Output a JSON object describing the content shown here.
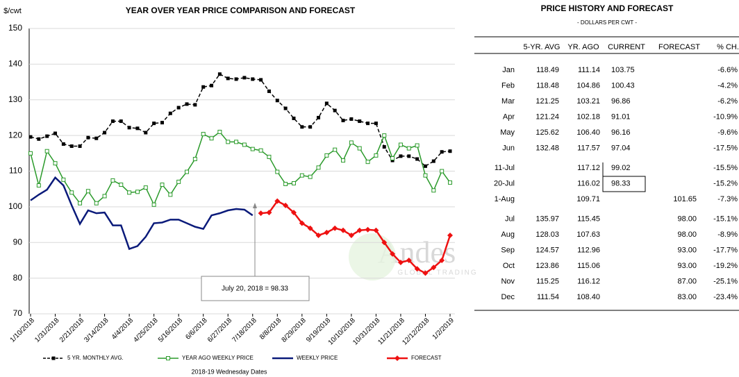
{
  "chart_data": {
    "type": "line",
    "title": "YEAR OVER YEAR PRICE COMPARISON AND FORECAST",
    "y_label": "$/cwt",
    "x_label": "2018-19 Wednesday Dates",
    "categories": [
      "1/10/2018",
      null,
      null,
      "1/31/2018",
      null,
      null,
      "2/21/2018",
      null,
      null,
      "3/14/2018",
      null,
      null,
      "4/4/2018",
      null,
      null,
      "4/25/2018",
      null,
      null,
      "5/16/2018",
      null,
      null,
      "6/6/2018",
      null,
      null,
      "6/27/2018",
      null,
      null,
      "7/18/2018",
      null,
      null,
      "8/8/2018",
      null,
      null,
      "8/29/2018",
      null,
      null,
      "9/19/2018",
      null,
      null,
      "10/10/2018",
      null,
      null,
      "10/31/2018",
      null,
      null,
      "11/21/2018",
      null,
      null,
      "12/12/2018",
      null,
      null,
      "1/2/2019"
    ],
    "ylim": [
      70,
      150
    ],
    "yticks": [
      70,
      80,
      90,
      100,
      110,
      120,
      130,
      140,
      150
    ],
    "series": [
      {
        "name": "5 YR. MONTHLY AVG.",
        "color": "#000000",
        "dash": true,
        "marker": "square-filled",
        "values": [
          119.6,
          119.0,
          119.8,
          120.6,
          117.6,
          117.0,
          117.0,
          119.4,
          119.2,
          120.8,
          124.0,
          124.0,
          122.2,
          122.0,
          120.8,
          123.4,
          123.6,
          126.2,
          127.8,
          128.8,
          128.6,
          133.6,
          134.0,
          137.2,
          136.0,
          135.8,
          136.2,
          135.8,
          135.6,
          132.4,
          129.8,
          127.6,
          124.8,
          122.4,
          122.4,
          125.0,
          129.0,
          127.0,
          124.2,
          124.6,
          124.0,
          123.4,
          123.4,
          116.8,
          113.0,
          114.2,
          114.2,
          113.4,
          111.4,
          112.8,
          115.4,
          115.6
        ]
      },
      {
        "name": "YEAR AGO WEEKLY PRICE",
        "color": "#2a9a2a",
        "dash": false,
        "marker": "square-open",
        "values": [
          115.0,
          106.0,
          115.6,
          112.2,
          107.6,
          104.0,
          101.0,
          104.4,
          101.0,
          103.0,
          107.4,
          106.2,
          104.0,
          104.2,
          105.4,
          100.6,
          106.2,
          103.4,
          107.0,
          109.8,
          113.4,
          120.4,
          119.2,
          121.0,
          118.2,
          118.2,
          117.4,
          116.2,
          115.8,
          114.0,
          109.8,
          106.4,
          106.6,
          108.8,
          108.4,
          111.0,
          114.4,
          116.0,
          113.0,
          118.0,
          116.4,
          112.6,
          114.4,
          120.0,
          113.6,
          117.4,
          116.4,
          117.2,
          108.8,
          104.6,
          110.0,
          106.8
        ]
      },
      {
        "name": "WEEKLY PRICE",
        "color": "#0a1a7a",
        "dash": false,
        "marker": "none",
        "values": [
          101.8,
          103.4,
          104.8,
          108.2,
          106.0,
          100.4,
          95.2,
          99.0,
          98.2,
          98.4,
          94.8,
          94.8,
          88.2,
          89.0,
          91.6,
          95.4,
          95.6,
          96.4,
          96.4,
          95.4,
          94.4,
          93.8,
          97.6,
          98.2,
          99.0,
          99.4,
          99.2,
          97.6,
          null,
          null,
          null,
          null,
          null,
          null,
          null,
          null,
          null,
          null,
          null,
          null,
          null,
          null,
          null,
          null,
          null,
          null,
          null,
          null,
          null,
          null,
          null,
          null
        ]
      },
      {
        "name": "FORECAST",
        "color": "#ee1111",
        "dash": false,
        "marker": "diamond",
        "values": [
          null,
          null,
          null,
          null,
          null,
          null,
          null,
          null,
          null,
          null,
          null,
          null,
          null,
          null,
          null,
          null,
          null,
          null,
          null,
          null,
          null,
          null,
          null,
          null,
          null,
          null,
          null,
          null,
          98.2,
          98.4,
          101.6,
          100.4,
          98.4,
          95.4,
          94.0,
          92.0,
          92.8,
          94.0,
          93.4,
          92.0,
          93.4,
          93.6,
          93.4,
          90.0,
          86.8,
          84.4,
          85.0,
          82.6,
          81.4,
          83.0,
          85.0,
          92.0
        ]
      }
    ],
    "annotation": "July 20, 2018  = 98.33"
  },
  "watermark": {
    "name": "Andes",
    "tagline": "GLOBAL TRADING"
  },
  "table": {
    "title": "PRICE HISTORY AND FORECAST",
    "subtitle": "- DOLLARS PER CWT -",
    "header": [
      null,
      "5-YR. AVG",
      "YR. AGO",
      "CURRENT",
      "FORECAST",
      "% CH."
    ],
    "rows": [
      [
        "Jan",
        "118.49",
        "111.14",
        "103.75",
        null,
        "-6.6%"
      ],
      [
        "Feb",
        "118.48",
        "104.86",
        "100.43",
        null,
        "-4.2%"
      ],
      [
        "Mar",
        "121.25",
        "103.21",
        "96.86",
        null,
        "-6.2%"
      ],
      [
        "Apr",
        "121.24",
        "102.18",
        "91.01",
        null,
        "-10.9%"
      ],
      [
        "May",
        "125.62",
        "106.40",
        "96.16",
        null,
        "-9.6%"
      ],
      [
        "Jun",
        "132.48",
        "117.57",
        "97.04",
        null,
        "-17.5%"
      ],
      [
        "11-Jul",
        null,
        "117.12",
        "99.02",
        null,
        "-15.5%"
      ],
      [
        "20-Jul",
        null,
        "116.02",
        "98.33",
        null,
        "-15.2%"
      ],
      [
        "1-Aug",
        null,
        "109.71",
        null,
        "101.65",
        "-7.3%"
      ],
      [
        "Jul",
        "135.97",
        "115.45",
        null,
        "98.00",
        "-15.1%"
      ],
      [
        "Aug",
        "128.03",
        "107.63",
        null,
        "98.00",
        "-8.9%"
      ],
      [
        "Sep",
        "124.57",
        "112.96",
        null,
        "93.00",
        "-17.7%"
      ],
      [
        "Oct",
        "123.86",
        "115.06",
        null,
        "93.00",
        "-19.2%"
      ],
      [
        "Nov",
        "115.25",
        "116.12",
        null,
        "87.00",
        "-25.1%"
      ],
      [
        "Dec",
        "111.54",
        "108.40",
        null,
        "83.00",
        "-23.4%"
      ]
    ]
  }
}
